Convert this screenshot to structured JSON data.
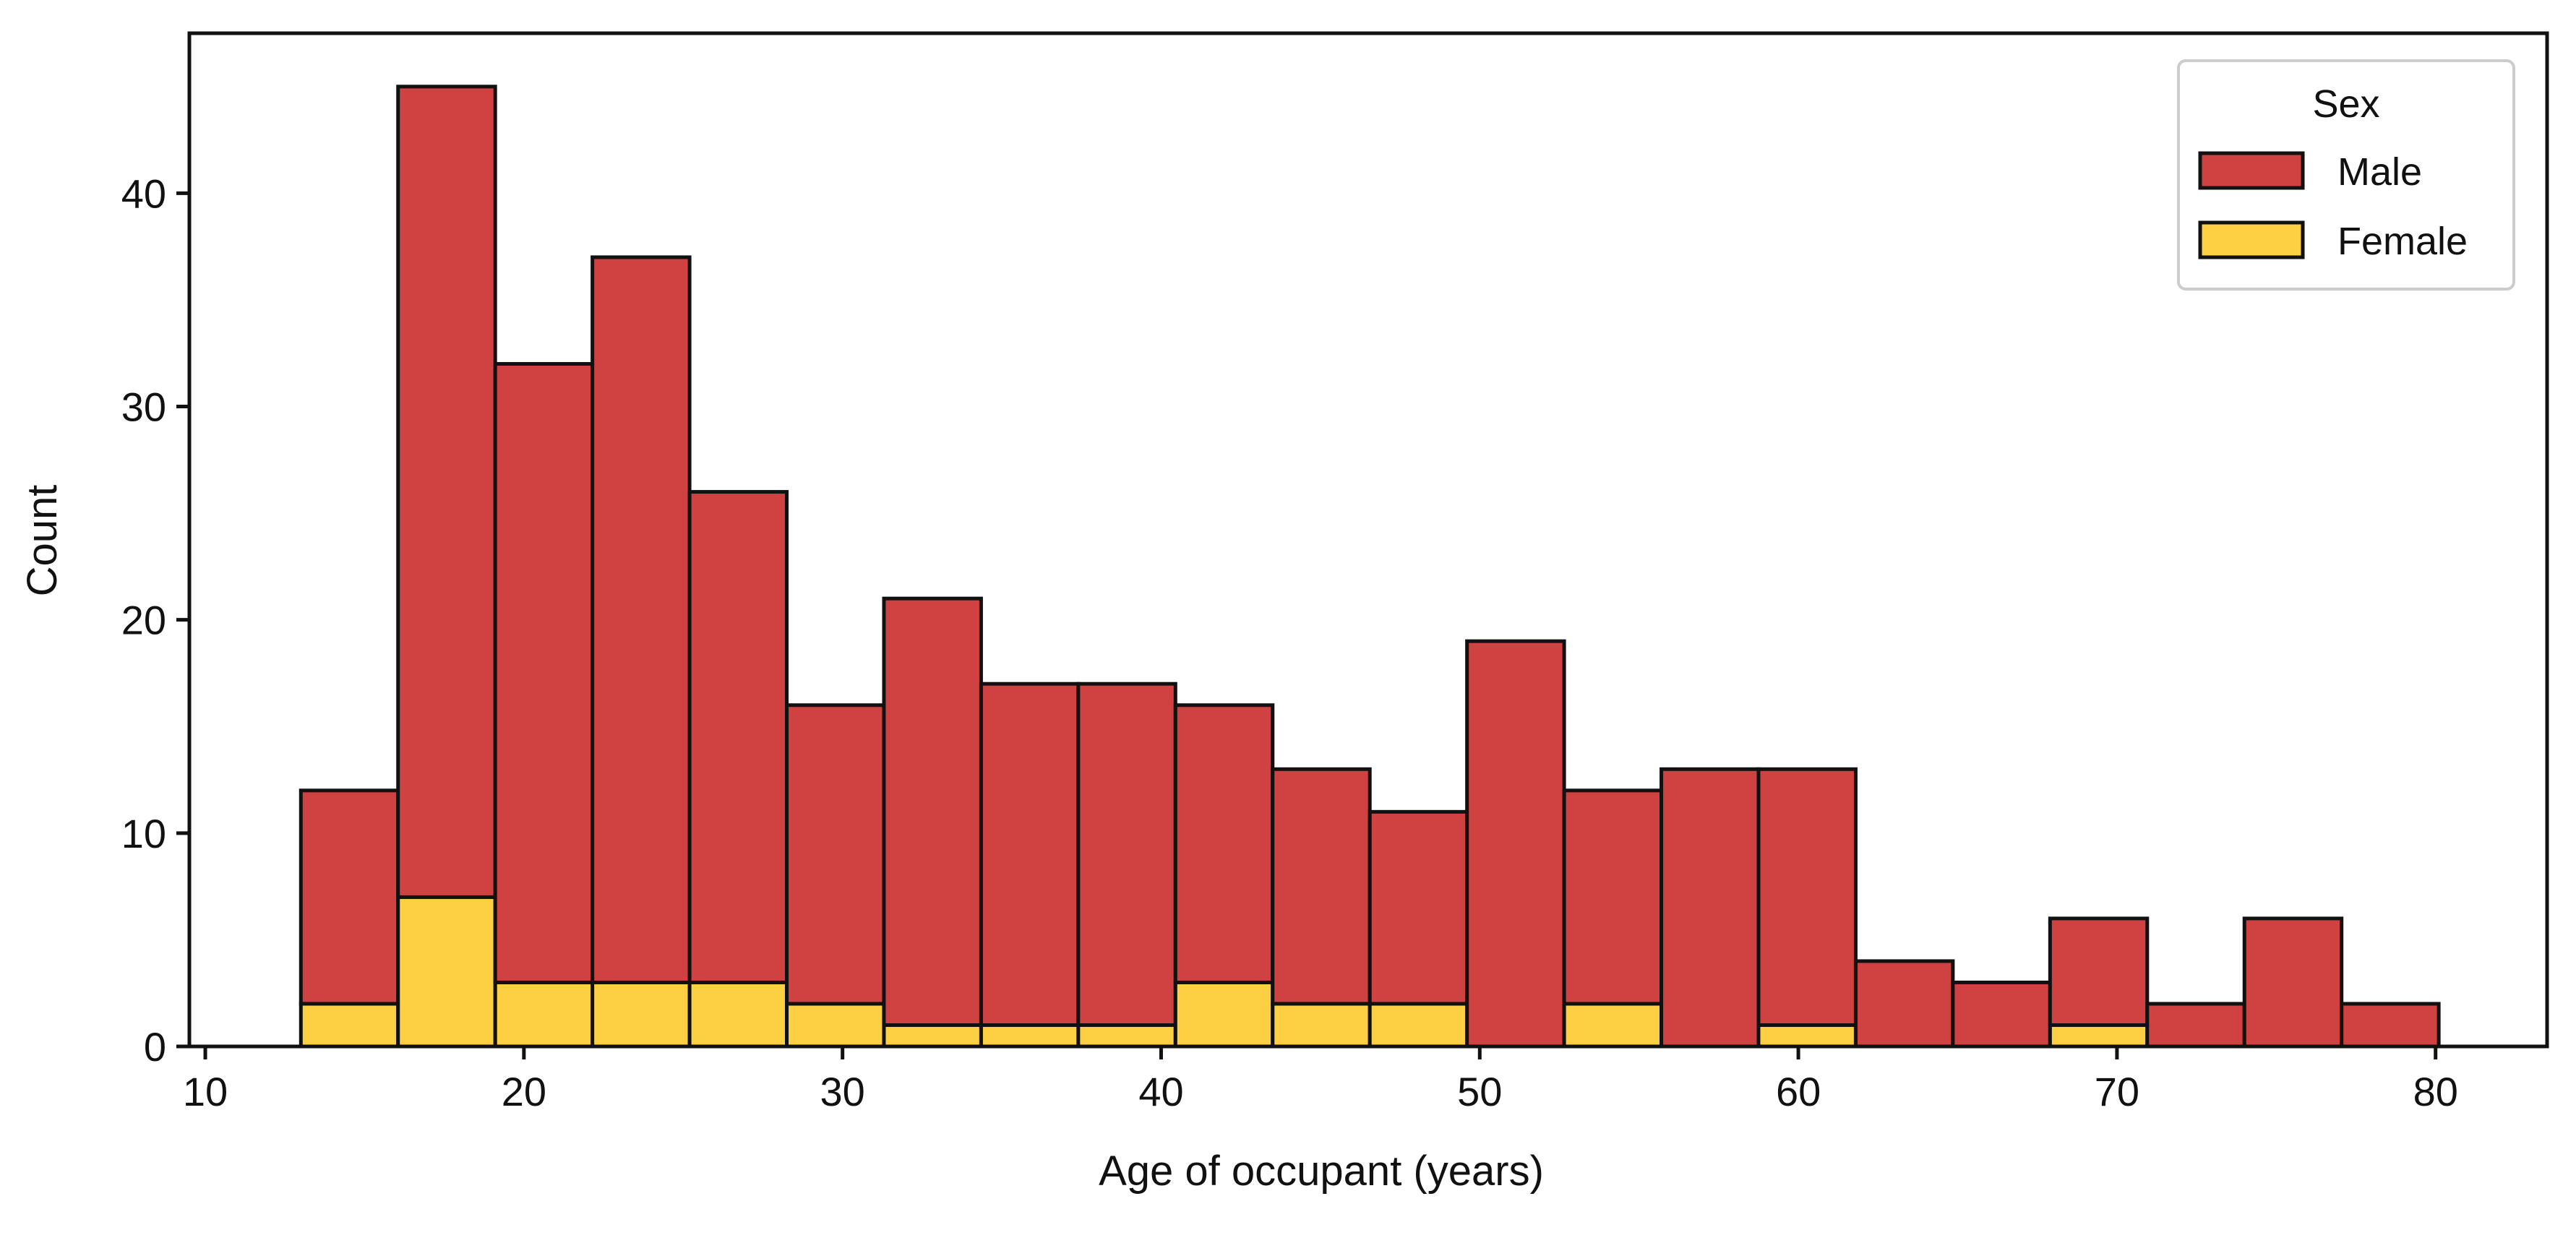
{
  "chart_data": {
    "type": "bar",
    "subtype": "stacked-histogram",
    "xlabel": "Age of occupant (years)",
    "ylabel": "Count",
    "xlim": [
      9.5,
      83.5
    ],
    "ylim": [
      0,
      47.5
    ],
    "x_ticks": [
      10,
      20,
      30,
      40,
      50,
      60,
      70,
      80
    ],
    "y_ticks": [
      0,
      10,
      20,
      30,
      40
    ],
    "grid": false,
    "legend": {
      "title": "Sex",
      "placement": "top-right",
      "entries": [
        {
          "label": "Male",
          "color": "#d04242"
        },
        {
          "label": "Female",
          "color": "#fdd043"
        }
      ]
    },
    "bin_edges": [
      13,
      16.05,
      19.1,
      22.15,
      25.2,
      28.25,
      31.3,
      34.35,
      37.4,
      40.45,
      43.5,
      46.55,
      49.6,
      52.65,
      55.7,
      58.75,
      61.8,
      64.85,
      67.9,
      70.95,
      74,
      77.05,
      80.1
    ],
    "series": [
      {
        "name": "Female",
        "color": "#fdd043",
        "values": [
          2,
          7,
          3,
          3,
          3,
          2,
          1,
          1,
          1,
          3,
          2,
          2,
          0,
          2,
          0,
          1,
          0,
          0,
          1,
          0,
          0,
          0
        ]
      },
      {
        "name": "Male",
        "color": "#d04242",
        "values": [
          10,
          38,
          29,
          34,
          23,
          14,
          20,
          16,
          16,
          13,
          11,
          9,
          19,
          10,
          13,
          12,
          4,
          3,
          5,
          2,
          6,
          2
        ]
      }
    ]
  }
}
